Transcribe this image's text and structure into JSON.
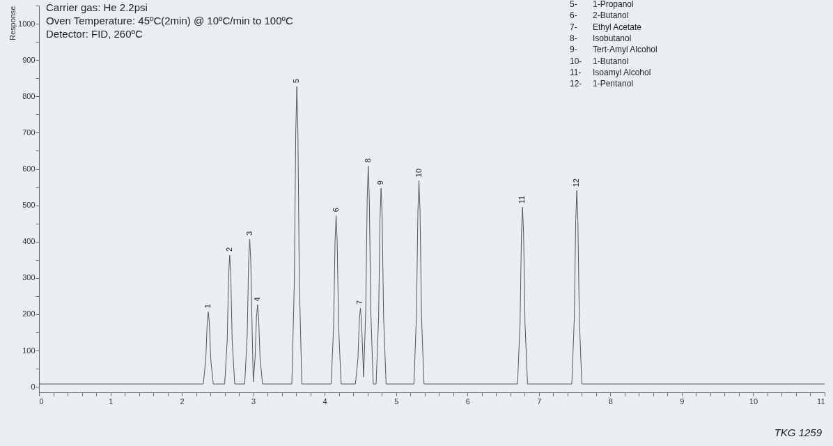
{
  "chart_data": {
    "type": "line",
    "ylabel": "Response",
    "x": [
      0,
      2.3,
      2.335,
      2.355,
      2.37,
      2.385,
      2.405,
      2.44,
      2.6,
      2.635,
      2.655,
      2.67,
      2.685,
      2.705,
      2.74,
      2.88,
      2.915,
      2.935,
      2.95,
      2.965,
      2.985,
      3.0,
      3.025,
      3.045,
      3.06,
      3.075,
      3.095,
      3.13,
      3.54,
      3.575,
      3.595,
      3.61,
      3.625,
      3.645,
      3.68,
      4.09,
      4.125,
      4.145,
      4.16,
      4.175,
      4.195,
      4.23,
      4.43,
      4.465,
      4.485,
      4.5,
      4.515,
      4.545,
      4.575,
      4.595,
      4.61,
      4.625,
      4.645,
      4.68,
      4.72,
      4.755,
      4.775,
      4.79,
      4.805,
      4.825,
      4.86,
      5.25,
      5.285,
      5.305,
      5.32,
      5.335,
      5.355,
      5.39,
      6.7,
      6.735,
      6.755,
      6.77,
      6.785,
      6.805,
      6.84,
      7.46,
      7.495,
      7.515,
      7.53,
      7.545,
      7.565,
      7.6,
      11
    ],
    "values": [
      8,
      8,
      75,
      177,
      207,
      177,
      75,
      8,
      8,
      127,
      309,
      363,
      309,
      127,
      8,
      8,
      142,
      346,
      407,
      346,
      150,
      14,
      79,
      192,
      226,
      192,
      79,
      8,
      8,
      289,
      703,
      827,
      703,
      289,
      8,
      8,
      165,
      401,
      472,
      401,
      165,
      8,
      8,
      76,
      184,
      217,
      184,
      27,
      213,
      517,
      608,
      517,
      213,
      8,
      8,
      191,
      465,
      547,
      465,
      191,
      8,
      8,
      199,
      483,
      568,
      483,
      199,
      8,
      8,
      173,
      421,
      495,
      421,
      173,
      8,
      8,
      189,
      460,
      541,
      460,
      189,
      8,
      8
    ],
    "color": "#555555",
    "xlim": [
      0,
      11
    ],
    "ylim": [
      -15,
      1050
    ],
    "xticks": [
      0,
      {
        "value": 0.2,
        "label": null
      },
      {
        "value": 0.4,
        "label": null
      },
      {
        "value": 0.6,
        "label": null
      },
      {
        "value": 0.8,
        "label": null
      },
      1,
      {
        "value": 1.2,
        "label": null
      },
      {
        "value": 1.4,
        "label": null
      },
      {
        "value": 1.6,
        "label": null
      },
      {
        "value": 1.8,
        "label": null
      },
      2,
      {
        "value": 2.2,
        "label": null
      },
      {
        "value": 2.4,
        "label": null
      },
      {
        "value": 2.6,
        "label": null
      },
      {
        "value": 2.8,
        "label": null
      },
      3,
      {
        "value": 3.2,
        "label": null
      },
      {
        "value": 3.4,
        "label": null
      },
      {
        "value": 3.6,
        "label": null
      },
      {
        "value": 3.8,
        "label": null
      },
      4,
      {
        "value": 4.2,
        "label": null
      },
      {
        "value": 4.4,
        "label": null
      },
      {
        "value": 4.6,
        "label": null
      },
      {
        "value": 4.8,
        "label": null
      },
      5,
      {
        "value": 5.2,
        "label": null
      },
      {
        "value": 5.4,
        "label": null
      },
      {
        "value": 5.6,
        "label": null
      },
      {
        "value": 5.8,
        "label": null
      },
      6,
      {
        "value": 6.2,
        "label": null
      },
      {
        "value": 6.4,
        "label": null
      },
      {
        "value": 6.6,
        "label": null
      },
      {
        "value": 6.8,
        "label": null
      },
      7,
      {
        "value": 7.2,
        "label": null
      },
      {
        "value": 7.4,
        "label": null
      },
      {
        "value": 7.6,
        "label": null
      },
      {
        "value": 7.8,
        "label": null
      },
      8,
      {
        "value": 8.2,
        "label": null
      },
      {
        "value": 8.4,
        "label": null
      },
      {
        "value": 8.6,
        "label": null
      },
      {
        "value": 8.8,
        "label": null
      },
      9,
      {
        "value": 9.2,
        "label": null
      },
      {
        "value": 9.4,
        "label": null
      },
      {
        "value": 9.6,
        "label": null
      },
      {
        "value": 9.8,
        "label": null
      },
      10,
      {
        "value": 10.2,
        "label": null
      },
      {
        "value": 10.4,
        "label": null
      },
      {
        "value": 10.6,
        "label": null
      },
      {
        "value": 10.8,
        "label": null
      },
      11
    ],
    "yticks": [
      0,
      {
        "value": 50,
        "label": null
      },
      100,
      {
        "value": 150,
        "label": null
      },
      200,
      {
        "value": 250,
        "label": null
      },
      300,
      {
        "value": 350,
        "label": null
      },
      400,
      {
        "value": 450,
        "label": null
      },
      500,
      {
        "value": 550,
        "label": null
      },
      600,
      {
        "value": 650,
        "label": null
      },
      700,
      {
        "value": 750,
        "label": null
      },
      800,
      {
        "value": 850,
        "label": null
      },
      900,
      {
        "value": 950,
        "label": null
      },
      1000,
      {
        "value": 1050,
        "label": null
      }
    ],
    "grid": false,
    "marker": "none",
    "line_style": "solid",
    "annotations": [
      {
        "text": "1",
        "x": 2.37,
        "y": 207
      },
      {
        "text": "2",
        "x": 2.67,
        "y": 363
      },
      {
        "text": "3",
        "x": 2.95,
        "y": 407
      },
      {
        "text": "4",
        "x": 3.06,
        "y": 226
      },
      {
        "text": "5",
        "x": 3.61,
        "y": 827
      },
      {
        "text": "6",
        "x": 4.16,
        "y": 472
      },
      {
        "text": "7",
        "x": 4.5,
        "y": 217
      },
      {
        "text": "8",
        "x": 4.61,
        "y": 608
      },
      {
        "text": "9",
        "x": 4.79,
        "y": 547
      },
      {
        "text": "10",
        "x": 5.32,
        "y": 568
      },
      {
        "text": "11",
        "x": 6.77,
        "y": 495
      },
      {
        "text": "12",
        "x": 7.53,
        "y": 541
      },
      "Carrier gas: He 2.2psi",
      "Oven Temperature: 45ºC(2min) @ 10ºC/min to 100ºC",
      "Detector: FID, 260ºC",
      "5- 1-Propanol",
      "6- 2-Butanol",
      "7- Ethyl Acetate",
      "8- Isobutanol",
      "9- Tert-Amyl Alcohol",
      "10- 1-Butanol",
      "11- Isoamyl Alcohol",
      "12- 1-Pentanol",
      "TKG 1259"
    ]
  }
}
